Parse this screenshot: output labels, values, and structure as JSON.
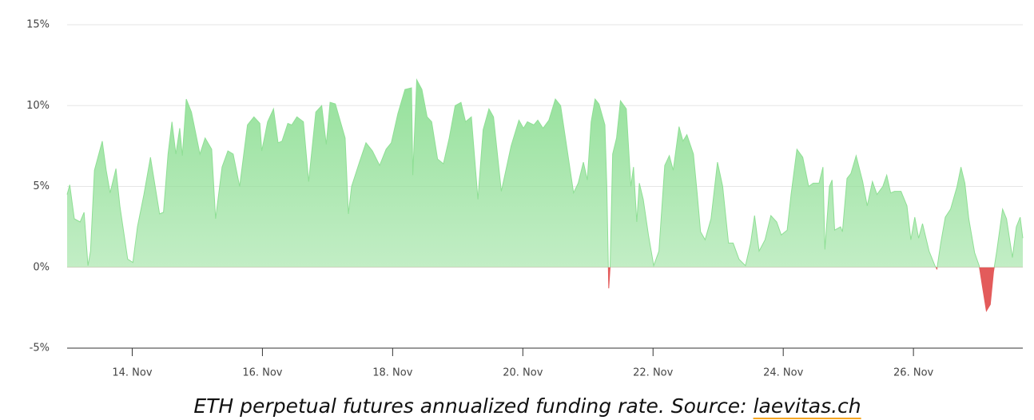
{
  "chart_data": {
    "type": "area",
    "caption": "ETH perpetual futures annualized funding rate. Source:",
    "source": "laevitas.ch",
    "xlim": [
      13,
      27.68
    ],
    "xticks": [
      {
        "value": 14,
        "label": "14. Nov"
      },
      {
        "value": 16,
        "label": "16. Nov"
      },
      {
        "value": 18,
        "label": "18. Nov"
      },
      {
        "value": 20,
        "label": "20. Nov"
      },
      {
        "value": 22,
        "label": "22. Nov"
      },
      {
        "value": 24,
        "label": "24. Nov"
      },
      {
        "value": 26,
        "label": "26. Nov"
      }
    ],
    "ylim": [
      -5,
      15
    ],
    "yticks": [
      {
        "value": -5,
        "label": "-5%"
      },
      {
        "value": 0,
        "label": "0%"
      },
      {
        "value": 5,
        "label": "5%"
      },
      {
        "value": 10,
        "label": "10%"
      },
      {
        "value": 15,
        "label": "15%"
      }
    ],
    "grid": true,
    "color": "#8fdf95",
    "negative_color": "#e35b5b",
    "x": [
      13.0,
      13.04,
      13.11,
      13.2,
      13.26,
      13.32,
      13.36,
      13.42,
      13.54,
      13.6,
      13.66,
      13.75,
      13.81,
      13.93,
      14.01,
      14.08,
      14.18,
      14.28,
      14.42,
      14.48,
      14.55,
      14.61,
      14.67,
      14.73,
      14.77,
      14.83,
      14.91,
      15.04,
      15.12,
      15.22,
      15.28,
      15.38,
      15.47,
      15.55,
      15.65,
      15.77,
      15.87,
      15.96,
      15.99,
      16.08,
      16.17,
      16.24,
      16.3,
      16.39,
      16.45,
      16.53,
      16.63,
      16.71,
      16.82,
      16.91,
      16.98,
      17.04,
      17.12,
      17.27,
      17.32,
      17.37,
      17.49,
      17.59,
      17.69,
      17.8,
      17.9,
      17.98,
      18.08,
      18.19,
      18.29,
      18.31,
      18.37,
      18.45,
      18.53,
      18.6,
      18.69,
      18.78,
      18.87,
      18.96,
      19.05,
      19.12,
      19.21,
      19.31,
      19.39,
      19.48,
      19.55,
      19.67,
      19.82,
      19.94,
      20.01,
      20.07,
      20.17,
      20.23,
      20.31,
      20.4,
      20.5,
      20.58,
      20.68,
      20.78,
      20.85,
      20.93,
      20.99,
      21.05,
      21.11,
      21.17,
      21.26,
      21.29,
      21.32,
      21.34,
      21.38,
      21.44,
      21.5,
      21.59,
      21.66,
      21.7,
      21.75,
      21.79,
      21.85,
      21.93,
      22.01,
      22.09,
      22.18,
      22.25,
      22.31,
      22.4,
      22.46,
      22.52,
      22.62,
      22.68,
      22.73,
      22.8,
      22.89,
      22.99,
      23.07,
      23.16,
      23.23,
      23.32,
      23.42,
      23.5,
      23.56,
      23.63,
      23.72,
      23.81,
      23.9,
      23.97,
      24.06,
      24.12,
      24.21,
      24.3,
      24.39,
      24.46,
      24.55,
      24.61,
      24.64,
      24.71,
      24.75,
      24.79,
      24.88,
      24.91,
      24.98,
      25.04,
      25.12,
      25.22,
      25.29,
      25.37,
      25.44,
      25.53,
      25.59,
      25.65,
      25.71,
      25.81,
      25.9,
      25.96,
      26.02,
      26.08,
      26.14,
      26.24,
      26.33,
      26.36,
      26.42,
      26.49,
      26.57,
      26.67,
      26.73,
      26.79,
      26.85,
      26.94,
      27.01,
      27.06,
      27.12,
      27.18,
      27.23,
      27.28,
      27.37,
      27.43,
      27.52,
      27.58,
      27.64,
      27.68
    ],
    "values": [
      4.5,
      5.1,
      3,
      2.8,
      3.4,
      0.1,
      1,
      6,
      7.8,
      6,
      4.6,
      6.1,
      3.8,
      0.5,
      0.3,
      2.5,
      4.5,
      6.8,
      3.3,
      3.4,
      7,
      9,
      7,
      8.6,
      6.9,
      10.4,
      9.6,
      7,
      8,
      7.3,
      3,
      6.2,
      7.2,
      7,
      5,
      8.8,
      9.3,
      8.9,
      7.2,
      9,
      9.8,
      7.7,
      7.8,
      8.9,
      8.8,
      9.3,
      9,
      5.3,
      9.6,
      10,
      7.6,
      10.2,
      10.1,
      8,
      3.3,
      5,
      6.5,
      7.7,
      7.2,
      6.3,
      7.3,
      7.7,
      9.5,
      11,
      11.1,
      5.7,
      11.6,
      11,
      9.3,
      9,
      6.7,
      6.4,
      8,
      10,
      10.2,
      9,
      9.3,
      4.2,
      8.5,
      9.8,
      9.3,
      4.7,
      7.5,
      9.1,
      8.6,
      9,
      8.8,
      9.1,
      8.6,
      9.1,
      10.4,
      10,
      7.3,
      4.6,
      5.2,
      6.5,
      5.4,
      9,
      10.4,
      10.1,
      8.8,
      5,
      -1.3,
      0,
      7,
      8,
      10.3,
      9.8,
      5,
      6.2,
      2.8,
      5.2,
      4.2,
      2,
      0.1,
      1,
      6.3,
      6.9,
      6,
      8.7,
      7.8,
      8.2,
      7,
      4.5,
      2.2,
      1.7,
      3,
      6.5,
      5,
      1.5,
      1.5,
      0.5,
      0.1,
      1.5,
      3.2,
      1,
      1.7,
      3.2,
      2.8,
      2,
      2.3,
      4.5,
      7.3,
      6.8,
      5,
      5.2,
      5.2,
      6.2,
      1.1,
      5,
      5.4,
      2.3,
      2.5,
      2.2,
      5.5,
      5.8,
      6.9,
      5.3,
      3.8,
      5.3,
      4.5,
      5,
      5.7,
      4.6,
      4.7,
      4.7,
      3.8,
      1.7,
      3.1,
      1.8,
      2.7,
      1,
      0.1,
      -0.1,
      1.5,
      3.1,
      3.6,
      5,
      6.2,
      5.2,
      3,
      0.9,
      0.1,
      -1.2,
      -2.7,
      -2.3,
      -0.3,
      1,
      3.6,
      3,
      0.6,
      2.5,
      3.1,
      1.8
    ]
  }
}
